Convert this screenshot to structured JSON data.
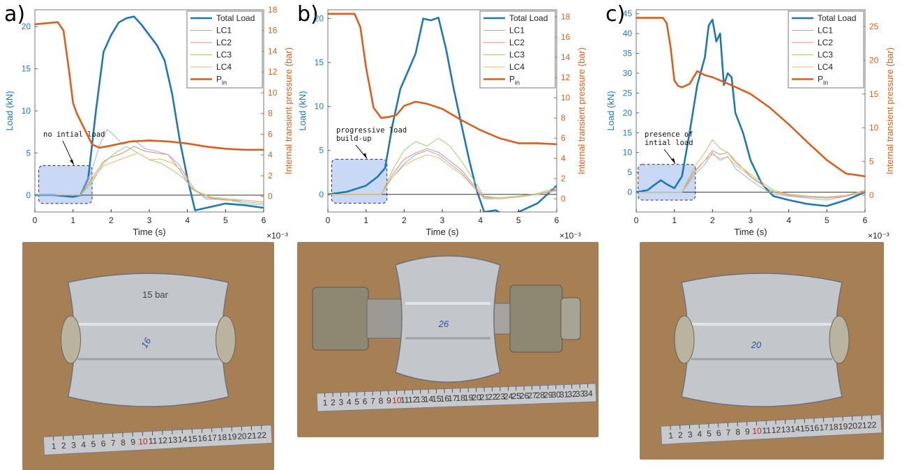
{
  "panels": [
    {
      "letter": "a)",
      "annotation": [
        "no intial load"
      ],
      "photo_number": "16",
      "photo_text_extra": "15 bar"
    },
    {
      "letter": "b)",
      "annotation": [
        "progressive load",
        "build-up"
      ],
      "photo_number": "26",
      "photo_text_extra": ""
    },
    {
      "letter": "c)",
      "annotation": [
        "presence of",
        "intial load"
      ],
      "photo_number": "20",
      "photo_text_extra": ""
    }
  ],
  "ruler_numbers_a": [
    "1",
    "2",
    "3",
    "4",
    "5",
    "6",
    "7",
    "8",
    "9",
    "10",
    "11",
    "12",
    "13",
    "14",
    "15",
    "16",
    "17",
    "18",
    "19",
    "20",
    "21",
    "22"
  ],
  "ruler_numbers_b": [
    "1",
    "2",
    "3",
    "4",
    "5",
    "6",
    "7",
    "8",
    "9",
    "10",
    "11",
    "12",
    "13",
    "14",
    "15",
    "16",
    "17",
    "18",
    "19",
    "20",
    "21",
    "22",
    "23",
    "24",
    "25",
    "26",
    "27",
    "28",
    "29",
    "30",
    "31",
    "32",
    "33",
    "34"
  ],
  "ruler_numbers_c": [
    "1",
    "2",
    "3",
    "4",
    "5",
    "6",
    "7",
    "8",
    "9",
    "10",
    "11",
    "12",
    "13",
    "14",
    "15",
    "16",
    "17",
    "18",
    "19",
    "20",
    "21",
    "22"
  ],
  "colors": {
    "total_load": "#1f77b4",
    "lc1": "#8fb4e3",
    "lc2": "#e8887a",
    "lc3": "#9ccf7a",
    "lc4": "#e8b86a",
    "pin": "#d95f1c",
    "highlight": "#c9d9f5",
    "photo_bg": "#b58a5c"
  },
  "chart_data": [
    {
      "type": "line",
      "xlabel": "Time (s)",
      "ylabel": "Load (kN)",
      "y2label": "Internal transient pressure (bar)",
      "xlim": [
        0,
        6
      ],
      "x_exponent": "×10⁻³",
      "xticks": [
        0,
        1,
        2,
        3,
        4,
        5,
        6
      ],
      "ylim": [
        -2,
        22
      ],
      "yticks": [
        0,
        5,
        10,
        15,
        20
      ],
      "y2lim": [
        -1.5,
        18
      ],
      "y2ticks": [
        0,
        2,
        4,
        6,
        8,
        10,
        12,
        14,
        16,
        18
      ],
      "legend": [
        "Total Load",
        "LC1",
        "LC2",
        "LC3",
        "LC4",
        "P_in"
      ],
      "legend_placement": "top-right",
      "highlight_box": {
        "x": [
          0.1,
          1.5
        ],
        "y": [
          -1,
          3.5
        ]
      },
      "series": [
        {
          "name": "Total Load",
          "x": [
            0,
            0.5,
            1.0,
            1.2,
            1.4,
            1.6,
            1.8,
            2.0,
            2.2,
            2.4,
            2.6,
            2.8,
            3.0,
            3.2,
            3.4,
            3.6,
            3.8,
            4.0,
            4.2,
            4.5,
            5.0,
            5.5,
            6.0
          ],
          "y": [
            0,
            0,
            -0.2,
            0,
            2,
            10,
            17,
            19,
            20.5,
            21,
            21.2,
            20.2,
            19,
            17.8,
            16,
            12,
            6.5,
            2,
            -1.8,
            -1.5,
            -1.0,
            -1.2,
            -1.5
          ]
        },
        {
          "name": "LC1",
          "x": [
            0,
            1.2,
            1.5,
            1.7,
            1.9,
            2.1,
            2.3,
            2.6,
            2.9,
            3.2,
            3.5,
            3.8,
            4.1,
            4.5,
            5.0,
            5.5,
            6.0
          ],
          "y": [
            0,
            0,
            3,
            6,
            7.8,
            7,
            6,
            6.5,
            5.5,
            5.2,
            4.8,
            3.5,
            1,
            -0.5,
            -0.5,
            -0.8,
            -1.0
          ]
        },
        {
          "name": "LC2",
          "x": [
            0,
            1.2,
            1.5,
            1.8,
            2.0,
            2.3,
            2.6,
            2.9,
            3.2,
            3.5,
            3.8,
            4.1,
            4.5,
            5.0,
            5.5,
            6.0
          ],
          "y": [
            0,
            0,
            2,
            4,
            4.5,
            5,
            5.8,
            5.2,
            5,
            4.8,
            3,
            0.8,
            -0.3,
            -0.6,
            -0.6,
            -0.8
          ]
        },
        {
          "name": "LC3",
          "x": [
            0,
            1.2,
            1.5,
            1.8,
            2.1,
            2.4,
            2.7,
            3.0,
            3.3,
            3.6,
            3.9,
            4.2,
            4.6,
            5.0,
            5.5,
            6.0
          ],
          "y": [
            0,
            0,
            1.5,
            3.8,
            5,
            5.8,
            5,
            4.2,
            3.8,
            3,
            2,
            0.5,
            -0.3,
            -0.5,
            -1,
            -1.2
          ]
        },
        {
          "name": "LC4",
          "x": [
            0,
            1.2,
            1.5,
            1.8,
            2.1,
            2.4,
            2.7,
            3.0,
            3.3,
            3.6,
            3.9,
            4.2,
            4.6,
            5.0,
            5.5,
            6.0
          ],
          "y": [
            0,
            0,
            1.8,
            3.5,
            4,
            4.5,
            5,
            4.2,
            4.3,
            3.8,
            2.8,
            0.6,
            -0.2,
            -0.4,
            -0.6,
            -0.8
          ]
        },
        {
          "name": "P_in",
          "axis": "right",
          "x": [
            0,
            0.6,
            0.75,
            0.9,
            1.0,
            1.1,
            1.3,
            1.5,
            1.7,
            2.0,
            2.5,
            3.0,
            3.5,
            4.0,
            4.5,
            5.0,
            5.5,
            6.0
          ],
          "y": [
            16.6,
            16.8,
            16,
            12,
            9,
            8,
            6.5,
            5,
            4.7,
            4.9,
            5.3,
            5.4,
            5.3,
            5.1,
            4.8,
            4.6,
            4.5,
            4.5
          ]
        }
      ]
    },
    {
      "type": "line",
      "xlabel": "Time (s)",
      "ylabel": "Load (kN)",
      "y2label": "Internal transient pressure (bar)",
      "xlim": [
        0,
        6
      ],
      "x_exponent": "×10⁻³",
      "xticks": [
        0,
        1,
        2,
        3,
        4,
        5,
        6
      ],
      "ylim": [
        -2,
        21
      ],
      "yticks": [
        0,
        5,
        10,
        15,
        20
      ],
      "y2lim": [
        -1.3,
        18.7
      ],
      "y2ticks": [
        0,
        2,
        4,
        6,
        8,
        10,
        12,
        14,
        16,
        18
      ],
      "legend": [
        "Total Load",
        "LC1",
        "LC2",
        "LC3",
        "LC4",
        "P_in"
      ],
      "legend_placement": "top-right",
      "highlight_box": {
        "x": [
          0.1,
          1.55
        ],
        "y": [
          -1,
          4
        ]
      },
      "series": [
        {
          "name": "Total Load",
          "x": [
            0,
            0.5,
            1.0,
            1.3,
            1.5,
            1.7,
            1.9,
            2.1,
            2.3,
            2.5,
            2.7,
            2.9,
            3.1,
            3.3,
            3.5,
            3.7,
            3.9,
            4.1,
            4.4,
            4.7,
            5.0,
            5.5,
            6.0
          ],
          "y": [
            0,
            0.3,
            1,
            2,
            3,
            8,
            12,
            14,
            16,
            20,
            19.8,
            20.1,
            16.5,
            12,
            8,
            4,
            0.5,
            -2,
            -1.8,
            -2.5,
            -2,
            -1,
            1
          ]
        },
        {
          "name": "LC1",
          "x": [
            0,
            1.4,
            1.7,
            2.0,
            2.3,
            2.6,
            2.9,
            3.2,
            3.5,
            3.8,
            4.1,
            4.5,
            5.0,
            5.5,
            6.0
          ],
          "y": [
            0,
            0,
            2,
            3.5,
            4.5,
            5,
            4.5,
            3.5,
            2.5,
            1,
            -0.5,
            -0.5,
            -0.3,
            0,
            0.5
          ]
        },
        {
          "name": "LC2",
          "x": [
            0,
            1.4,
            1.7,
            2.0,
            2.3,
            2.6,
            2.9,
            3.2,
            3.5,
            3.8,
            4.1,
            4.5,
            5.0,
            5.5,
            6.0
          ],
          "y": [
            0,
            0,
            2.3,
            4,
            4.7,
            5.2,
            4.8,
            3.8,
            2.8,
            1.2,
            -0.3,
            -0.4,
            -0.2,
            0,
            0.6
          ]
        },
        {
          "name": "LC3",
          "x": [
            0,
            1.4,
            1.7,
            2.0,
            2.3,
            2.6,
            2.9,
            3.2,
            3.5,
            3.8,
            4.1,
            4.5,
            5.0,
            5.5,
            6.0
          ],
          "y": [
            0,
            0,
            2.8,
            5,
            6,
            5.5,
            6.4,
            5.5,
            3.8,
            1.8,
            -0.2,
            -0.4,
            -0.2,
            0.1,
            0.8
          ]
        },
        {
          "name": "LC4",
          "x": [
            0,
            1.4,
            1.7,
            2.0,
            2.3,
            2.6,
            2.9,
            3.2,
            3.5,
            3.8,
            4.1,
            4.5,
            5.0,
            5.5,
            6.0
          ],
          "y": [
            0,
            0,
            2,
            3.3,
            4,
            4.5,
            4.2,
            3.2,
            2.3,
            0.9,
            -0.4,
            -0.5,
            -0.3,
            0,
            0.4
          ]
        },
        {
          "name": "P_in",
          "axis": "right",
          "x": [
            0,
            0.7,
            0.85,
            1.0,
            1.2,
            1.4,
            1.6,
            1.8,
            2.0,
            2.3,
            2.6,
            3.0,
            3.5,
            4.0,
            4.5,
            5.0,
            5.5,
            6.0
          ],
          "y": [
            18.3,
            18.3,
            17,
            13,
            9,
            8,
            8.1,
            8.3,
            9.2,
            9.6,
            9.4,
            8.9,
            7.8,
            6.8,
            6,
            5.5,
            5.5,
            5.4
          ]
        }
      ]
    },
    {
      "type": "line",
      "xlabel": "Time (s)",
      "ylabel": "Load (kN)",
      "y2label": "Internal transient pressure (bar)",
      "xlim": [
        0,
        6
      ],
      "x_exponent": "×10⁻³",
      "xticks": [
        0,
        1,
        2,
        3,
        4,
        5,
        6
      ],
      "ylim": [
        -5,
        46
      ],
      "yticks": [
        0,
        5,
        10,
        15,
        20,
        25,
        30,
        35,
        40,
        45
      ],
      "y2lim": [
        -2.5,
        27.5
      ],
      "y2ticks": [
        0,
        5,
        10,
        15,
        20,
        25
      ],
      "legend": [
        "Total Load",
        "LC1",
        "LC2",
        "LC3",
        "LC4",
        "P_in"
      ],
      "legend_placement": "top-right",
      "highlight_box": {
        "x": [
          0.05,
          1.55
        ],
        "y": [
          -2,
          7
        ]
      },
      "series": [
        {
          "name": "Total Load",
          "x": [
            0,
            0.3,
            0.5,
            0.65,
            0.8,
            1.0,
            1.2,
            1.4,
            1.6,
            1.8,
            1.9,
            2.0,
            2.1,
            2.2,
            2.3,
            2.4,
            2.5,
            2.6,
            2.8,
            3.0,
            3.3,
            3.6,
            4.0,
            4.5,
            5.0,
            5.5,
            6.0
          ],
          "y": [
            0,
            0.5,
            2,
            3,
            2,
            1,
            4,
            15,
            27,
            34,
            42,
            43.5,
            38,
            40,
            27,
            30,
            29,
            20,
            15,
            8,
            2,
            -1,
            -2,
            -3,
            -3.5,
            -2,
            0
          ]
        },
        {
          "name": "LC1",
          "x": [
            0,
            1.2,
            1.5,
            1.8,
            2.0,
            2.2,
            2.4,
            2.6,
            2.8,
            3.0,
            3.3,
            3.6,
            4.0,
            4.5,
            5.0,
            5.5,
            6.0
          ],
          "y": [
            0,
            0,
            4,
            7,
            10,
            8,
            9,
            6,
            4.5,
            3,
            1,
            -0.5,
            -1,
            -1.5,
            -2,
            -1,
            0
          ]
        },
        {
          "name": "LC2",
          "x": [
            0,
            1.2,
            1.5,
            1.8,
            2.0,
            2.2,
            2.4,
            2.6,
            2.8,
            3.0,
            3.3,
            3.6,
            4.0,
            4.5,
            5.0,
            5.5,
            6.0
          ],
          "y": [
            0,
            0,
            5,
            8,
            10.5,
            9.5,
            10,
            7.5,
            6,
            4,
            2,
            0,
            -0.8,
            -1.2,
            -1.5,
            -1,
            0
          ]
        },
        {
          "name": "LC3",
          "x": [
            0,
            1.2,
            1.5,
            1.8,
            2.0,
            2.2,
            2.4,
            2.6,
            2.8,
            3.0,
            3.3,
            3.6,
            4.0,
            4.5,
            5.0,
            5.5,
            6.0
          ],
          "y": [
            0,
            0,
            6,
            10,
            13.2,
            11,
            10,
            8,
            6,
            4.5,
            2.5,
            0.5,
            -0.5,
            -1,
            -1.3,
            -0.8,
            0.5
          ]
        },
        {
          "name": "LC4",
          "x": [
            0,
            1.2,
            1.5,
            1.8,
            2.0,
            2.2,
            2.4,
            2.6,
            2.8,
            3.0,
            3.3,
            3.6,
            4.0,
            4.5,
            5.0,
            5.5,
            6.0
          ],
          "y": [
            0,
            0,
            4.5,
            8,
            9.5,
            8.5,
            8.8,
            6.8,
            5.5,
            3.8,
            1.8,
            0.2,
            -0.6,
            -1,
            -1.2,
            -0.8,
            0.3
          ]
        },
        {
          "name": "P_in",
          "axis": "right",
          "x": [
            0,
            0.7,
            0.8,
            0.9,
            1.0,
            1.1,
            1.2,
            1.4,
            1.6,
            1.8,
            2.0,
            2.5,
            3.0,
            3.5,
            4.0,
            4.5,
            5.0,
            5.5,
            6.0
          ],
          "y": [
            26.3,
            26.3,
            25.5,
            22,
            17,
            16.2,
            16,
            16.5,
            18.4,
            17.8,
            17.5,
            16.3,
            15,
            13,
            10.5,
            7.8,
            5.2,
            3.2,
            2.8
          ]
        }
      ]
    }
  ]
}
